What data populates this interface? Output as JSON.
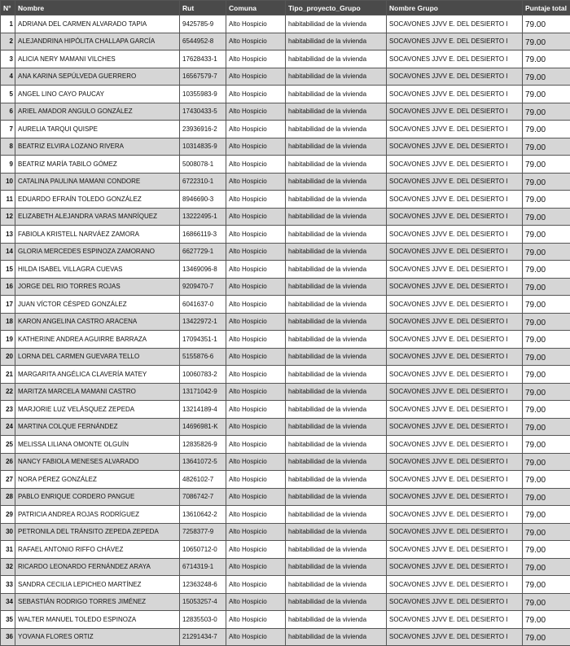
{
  "table": {
    "headers": [
      "N°",
      "Nombre",
      "Rut",
      "Comuna",
      "Tipo_proyecto_Grupo",
      "Nombre Grupo",
      "Puntaje total"
    ],
    "rows": [
      [
        "1",
        "ADRIANA DEL CARMEN ALVARADO TAPIA",
        "9425785-9",
        "Alto Hospicio",
        "habitabilidad de la vivienda",
        "SOCAVONES JJVV E. DEL DESIERTO I",
        "79.00"
      ],
      [
        "2",
        "ALEJANDRINA HIPÓLITA CHALLAPA GARCÍA",
        "6544952-8",
        "Alto Hospicio",
        "habitabilidad de la vivienda",
        "SOCAVONES JJVV E. DEL DESIERTO I",
        "79.00"
      ],
      [
        "3",
        "ALICIA NERY MAMANI VILCHES",
        "17628433-1",
        "Alto Hospicio",
        "habitabilidad de la vivienda",
        "SOCAVONES JJVV E. DEL DESIERTO I",
        "79.00"
      ],
      [
        "4",
        "ANA KARINA SEPÚLVEDA GUERRERO",
        "16567579-7",
        "Alto Hospicio",
        "habitabilidad de la vivienda",
        "SOCAVONES JJVV E. DEL DESIERTO I",
        "79.00"
      ],
      [
        "5",
        "ANGEL LINO CAYO PAUCAY",
        "10355983-9",
        "Alto Hospicio",
        "habitabilidad de la vivienda",
        "SOCAVONES JJVV E. DEL DESIERTO I",
        "79.00"
      ],
      [
        "6",
        "ARIEL AMADOR ANGULO GONZÁLEZ",
        "17430433-5",
        "Alto Hospicio",
        "habitabilidad de la vivienda",
        "SOCAVONES JJVV E. DEL DESIERTO I",
        "79.00"
      ],
      [
        "7",
        "AURELIA TARQUI QUISPE",
        "23936916-2",
        "Alto Hospicio",
        "habitabilidad de la vivienda",
        "SOCAVONES JJVV E. DEL DESIERTO I",
        "79.00"
      ],
      [
        "8",
        "BEATRIZ ELVIRA LOZANO RIVERA",
        "10314835-9",
        "Alto Hospicio",
        "habitabilidad de la vivienda",
        "SOCAVONES JJVV E. DEL DESIERTO I",
        "79.00"
      ],
      [
        "9",
        "BEATRIZ MARÍA TABILO GÓMEZ",
        "5008078-1",
        "Alto Hospicio",
        "habitabilidad de la vivienda",
        "SOCAVONES JJVV E. DEL DESIERTO I",
        "79.00"
      ],
      [
        "10",
        "CATALINA PAULINA MAMANI CONDORE",
        "6722310-1",
        "Alto Hospicio",
        "habitabilidad de la vivienda",
        "SOCAVONES JJVV E. DEL DESIERTO I",
        "79.00"
      ],
      [
        "11",
        "EDUARDO EFRAÍN TOLEDO GONZÁLEZ",
        "8946690-3",
        "Alto Hospicio",
        "habitabilidad de la vivienda",
        "SOCAVONES JJVV E. DEL DESIERTO I",
        "79.00"
      ],
      [
        "12",
        "ELIZABETH ALEJANDRA VARAS MANRÍQUEZ",
        "13222495-1",
        "Alto Hospicio",
        "habitabilidad de la vivienda",
        "SOCAVONES JJVV E. DEL DESIERTO I",
        "79.00"
      ],
      [
        "13",
        "FABIOLA KRISTELL NARVÁEZ ZAMORA",
        "16866119-3",
        "Alto Hospicio",
        "habitabilidad de la vivienda",
        "SOCAVONES JJVV E. DEL DESIERTO I",
        "79.00"
      ],
      [
        "14",
        "GLORIA MERCEDES ESPINOZA ZAMORANO",
        "6627729-1",
        "Alto Hospicio",
        "habitabilidad de la vivienda",
        "SOCAVONES JJVV E. DEL DESIERTO I",
        "79.00"
      ],
      [
        "15",
        "HILDA ISABEL VILLAGRA CUEVAS",
        "13469096-8",
        "Alto Hospicio",
        "habitabilidad de la vivienda",
        "SOCAVONES JJVV E. DEL DESIERTO I",
        "79.00"
      ],
      [
        "16",
        "JORGE DEL RIO TORRES ROJAS",
        "9209470-7",
        "Alto Hospicio",
        "habitabilidad de la vivienda",
        "SOCAVONES JJVV E. DEL DESIERTO I",
        "79.00"
      ],
      [
        "17",
        "JUAN VÍCTOR CÉSPED GONZÁLEZ",
        "6041637-0",
        "Alto Hospicio",
        "habitabilidad de la vivienda",
        "SOCAVONES JJVV E. DEL DESIERTO I",
        "79.00"
      ],
      [
        "18",
        "KARON ANGELINA CASTRO ARACENA",
        "13422972-1",
        "Alto Hospicio",
        "habitabilidad de la vivienda",
        "SOCAVONES JJVV E. DEL DESIERTO I",
        "79.00"
      ],
      [
        "19",
        "KATHERINE ANDREA AGUIRRE BARRAZA",
        "17094351-1",
        "Alto Hospicio",
        "habitabilidad de la vivienda",
        "SOCAVONES JJVV E. DEL DESIERTO I",
        "79.00"
      ],
      [
        "20",
        "LORNA DEL CARMEN GUEVARA TELLO",
        "5155876-6",
        "Alto Hospicio",
        "habitabilidad de la vivienda",
        "SOCAVONES JJVV E. DEL DESIERTO I",
        "79.00"
      ],
      [
        "21",
        "MARGARITA ANGÉLICA CLAVERÍA MATEY",
        "10060783-2",
        "Alto Hospicio",
        "habitabilidad de la vivienda",
        "SOCAVONES JJVV E. DEL DESIERTO I",
        "79.00"
      ],
      [
        "22",
        "MARITZA MARCELA MAMANI CASTRO",
        "13171042-9",
        "Alto Hospicio",
        "habitabilidad de la vivienda",
        "SOCAVONES JJVV E. DEL DESIERTO I",
        "79.00"
      ],
      [
        "23",
        "MARJORIE LUZ VELÁSQUEZ ZEPEDA",
        "13214189-4",
        "Alto Hospicio",
        "habitabilidad de la vivienda",
        "SOCAVONES JJVV E. DEL DESIERTO I",
        "79.00"
      ],
      [
        "24",
        "MARTINA COLQUE FERNÁNDEZ",
        "14696981-K",
        "Alto Hospicio",
        "habitabilidad de la vivienda",
        "SOCAVONES JJVV E. DEL DESIERTO I",
        "79.00"
      ],
      [
        "25",
        "MELISSA LILIANA OMONTE OLGUÍN",
        "12835826-9",
        "Alto Hospicio",
        "habitabilidad de la vivienda",
        "SOCAVONES JJVV E. DEL DESIERTO I",
        "79.00"
      ],
      [
        "26",
        "NANCY FABIOLA MENESES ALVARADO",
        "13641072-5",
        "Alto Hospicio",
        "habitabilidad de la vivienda",
        "SOCAVONES JJVV E. DEL DESIERTO I",
        "79.00"
      ],
      [
        "27",
        "NORA PÉREZ GONZÁLEZ",
        "4826102-7",
        "Alto Hospicio",
        "habitabilidad de la vivienda",
        "SOCAVONES JJVV E. DEL DESIERTO I",
        "79.00"
      ],
      [
        "28",
        "PABLO ENRIQUE CORDERO PANGUE",
        "7086742-7",
        "Alto Hospicio",
        "habitabilidad de la vivienda",
        "SOCAVONES JJVV E. DEL DESIERTO I",
        "79.00"
      ],
      [
        "29",
        "PATRICIA ANDREA ROJAS RODRÍGUEZ",
        "13610642-2",
        "Alto Hospicio",
        "habitabilidad de la vivienda",
        "SOCAVONES JJVV E. DEL DESIERTO I",
        "79.00"
      ],
      [
        "30",
        "PETRONILA DEL TRÁNSITO ZEPEDA ZEPEDA",
        "7258377-9",
        "Alto Hospicio",
        "habitabilidad de la vivienda",
        "SOCAVONES JJVV E. DEL DESIERTO I",
        "79.00"
      ],
      [
        "31",
        "RAFAEL ANTONIO RIFFO CHÁVEZ",
        "10650712-0",
        "Alto Hospicio",
        "habitabilidad de la vivienda",
        "SOCAVONES JJVV E. DEL DESIERTO I",
        "79.00"
      ],
      [
        "32",
        "RICARDO LEONARDO FERNÁNDEZ ARAYA",
        "6714319-1",
        "Alto Hospicio",
        "habitabilidad de la vivienda",
        "SOCAVONES JJVV E. DEL DESIERTO I",
        "79.00"
      ],
      [
        "33",
        "SANDRA CECILIA LEPICHEO MARTÍNEZ",
        "12363248-6",
        "Alto Hospicio",
        "habitabilidad de la vivienda",
        "SOCAVONES JJVV E. DEL DESIERTO I",
        "79.00"
      ],
      [
        "34",
        "SEBASTIÁN RODRIGO TORRES JIMÉNEZ",
        "15053257-4",
        "Alto Hospicio",
        "habitabilidad de la vivienda",
        "SOCAVONES JJVV E. DEL DESIERTO I",
        "79.00"
      ],
      [
        "35",
        "WALTER MANUEL TOLEDO ESPINOZA",
        "12835503-0",
        "Alto Hospicio",
        "habitabilidad de la vivienda",
        "SOCAVONES JJVV E. DEL DESIERTO I",
        "79.00"
      ],
      [
        "36",
        "YOVANA FLORES ORTIZ",
        "21291434-7",
        "Alto Hospicio",
        "habitabilidad de la vivienda",
        "SOCAVONES JJVV E. DEL DESIERTO I",
        "79.00"
      ]
    ]
  }
}
